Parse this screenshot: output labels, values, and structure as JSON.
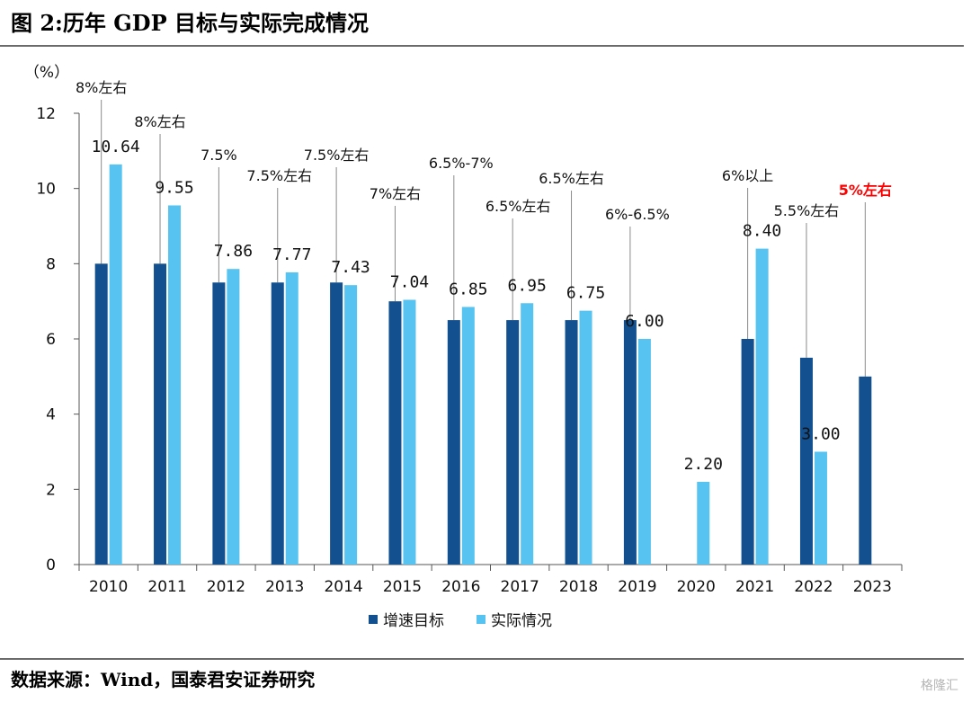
{
  "header": {
    "title": "图 2:历年 GDP 目标与实际完成情况"
  },
  "footer": {
    "source": "数据来源：Wind，国泰君安证券研究",
    "watermark": "格隆汇"
  },
  "colors": {
    "target": "#12508f",
    "actual": "#56c3f0",
    "highlight": "#ff0000"
  },
  "chart_data": {
    "type": "bar",
    "ylabel": "（%）",
    "ylim": [
      0,
      12
    ],
    "yticks": [
      0,
      2,
      4,
      6,
      8,
      10,
      12
    ],
    "categories": [
      "2010",
      "2011",
      "2012",
      "2013",
      "2014",
      "2015",
      "2016",
      "2017",
      "2018",
      "2019",
      "2020",
      "2021",
      "2022",
      "2023"
    ],
    "series": [
      {
        "name": "增速目标",
        "values": [
          8,
          8,
          7.5,
          7.5,
          7.5,
          7,
          6.5,
          6.5,
          6.5,
          6.5,
          null,
          6,
          5.5,
          5
        ]
      },
      {
        "name": "实际情况",
        "values": [
          10.64,
          9.55,
          7.86,
          7.77,
          7.43,
          7.04,
          6.85,
          6.95,
          6.75,
          6.0,
          2.2,
          8.4,
          3.0,
          null
        ]
      }
    ],
    "value_labels": [
      "10.64",
      "9.55",
      "7.86",
      "7.77",
      "7.43",
      "7.04",
      "6.85",
      "6.95",
      "6.75",
      "6.00",
      "2.20",
      "8.40",
      "3.00",
      ""
    ],
    "target_labels": [
      "8%左右",
      "8%左右",
      "7.5%",
      "7.5%左右",
      "7.5%左右",
      "7%左右",
      "6.5%-7%",
      "6.5%左右",
      "6.5%左右",
      "6%-6.5%",
      "",
      "6%以上",
      "5.5%左右",
      "5%左右"
    ],
    "highlight_index": 13,
    "grid": false,
    "legend_position": "bottom"
  }
}
